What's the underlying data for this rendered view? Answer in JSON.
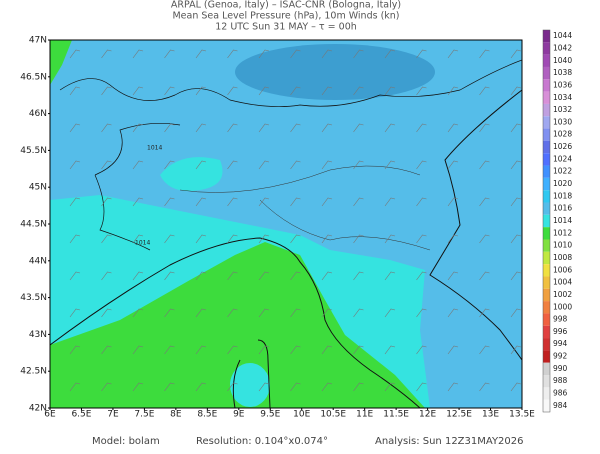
{
  "title_lines": [
    "ARPAL (Genoa, Italy)  –  ISAC-CNR (Bologna, Italy)",
    "Mean Sea Level Pressure (hPa), 10m Winds (kn)",
    "12 UTC Sun 31 MAY  –  τ = 00h"
  ],
  "lat_labels": [
    "47N",
    "46.5N",
    "46N",
    "45.5N",
    "45N",
    "44.5N",
    "44N",
    "43.5N",
    "43N",
    "42.5N",
    "42N"
  ],
  "lon_labels": [
    "6E",
    "6.5E",
    "7E",
    "7.5E",
    "8E",
    "8.5E",
    "9E",
    "9.5E",
    "10E",
    "10.5E",
    "11E",
    "11.5E",
    "12E",
    "12.5E",
    "13E",
    "13.5E"
  ],
  "colorbar_levels": [
    1044,
    1042,
    1040,
    1038,
    1036,
    1034,
    1032,
    1030,
    1028,
    1026,
    1024,
    1022,
    1020,
    1018,
    1016,
    1014,
    1012,
    1010,
    1008,
    1006,
    1004,
    1002,
    1000,
    998,
    996,
    994,
    992,
    990,
    988,
    986,
    984
  ],
  "contour_labels": [
    "1014",
    "1014"
  ],
  "footer": {
    "model": "Model: bolam",
    "resolution": "Resolution: 0.104°x0.074°",
    "analysis": "Analysis: Sun 12Z31MAY2026"
  }
}
